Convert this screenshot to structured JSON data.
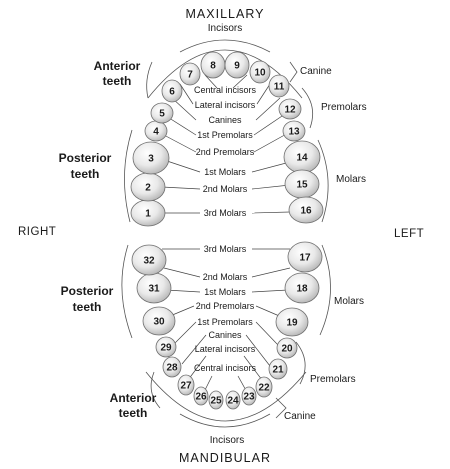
{
  "titles": {
    "maxillary": "MAXILLARY",
    "mandibular": "MANDIBULAR",
    "right": "RIGHT",
    "left": "LEFT"
  },
  "upper": {
    "incisors": "Incisors",
    "anterior": [
      "Anterior",
      "teeth"
    ],
    "posterior": [
      "Posterior",
      "teeth"
    ],
    "canine": "Canine",
    "premolars": "Premolars",
    "molars": "Molars",
    "center_labels": [
      "Central incisors",
      "Lateral incisors",
      "Canines",
      "1st Premolars",
      "2nd Premolars",
      "1st Molars",
      "2nd Molars",
      "3rd Molars"
    ]
  },
  "lower": {
    "incisors": "Incisors",
    "anterior": [
      "Anterior",
      "teeth"
    ],
    "posterior": [
      "Posterior",
      "teeth"
    ],
    "canine": "Canine",
    "premolars": "Premolars",
    "molars": "Molars",
    "center_labels": [
      "3rd Molars",
      "2nd Molars",
      "1st Molars",
      "2nd Premolars",
      "1st Premolars",
      "Canines",
      "Lateral incisors",
      "Central incisors"
    ]
  },
  "teeth": [
    "1",
    "2",
    "3",
    "4",
    "5",
    "6",
    "7",
    "8",
    "9",
    "10",
    "11",
    "12",
    "13",
    "14",
    "15",
    "16",
    "17",
    "18",
    "19",
    "20",
    "21",
    "22",
    "23",
    "24",
    "25",
    "26",
    "27",
    "28",
    "29",
    "30",
    "31",
    "32"
  ]
}
